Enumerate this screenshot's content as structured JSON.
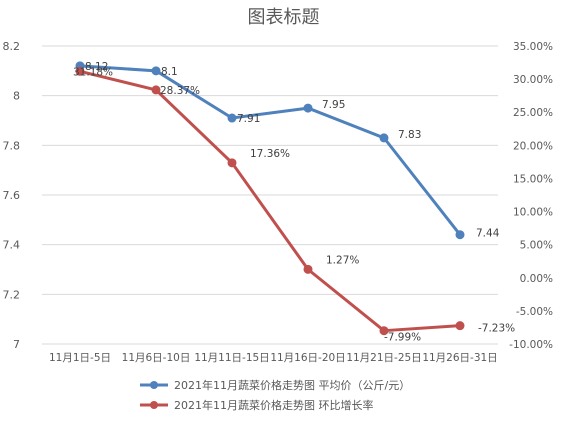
{
  "chart_data": {
    "type": "line",
    "title": "图表标题",
    "categories": [
      "11月1日-5日",
      "11月6日-10日",
      "11月11日-15日",
      "11月16日-20日",
      "11月21日-25日",
      "11月26日-31日"
    ],
    "series": [
      {
        "name": "2021年11月蔬菜价格走势图 平均价（公斤/元）",
        "axis": "left",
        "color": "#4f81bd",
        "values": [
          8.12,
          8.1,
          7.91,
          7.95,
          7.83,
          7.44
        ],
        "labels": [
          "8.12",
          "8.1",
          "7.91",
          "7.95",
          "7.83",
          "7.44"
        ]
      },
      {
        "name": "2021年11月蔬菜价格走势图 环比增长率",
        "axis": "right",
        "color": "#c0504d",
        "values": [
          31.18,
          28.37,
          17.36,
          1.27,
          -7.99,
          -7.23
        ],
        "labels": [
          "31.18%",
          "28.37%",
          "17.36%",
          "1.27%",
          "-7.99%",
          "-7.23%"
        ]
      }
    ],
    "y_left": {
      "ylim": [
        7,
        8.2
      ],
      "ticks": [
        7,
        7.2,
        7.4,
        7.6,
        7.8,
        8,
        8.2
      ],
      "tick_labels": [
        "7",
        "7.2",
        "7.4",
        "7.6",
        "7.8",
        "8",
        "8.2"
      ]
    },
    "y_right": {
      "ylim": [
        -10,
        35
      ],
      "ticks": [
        -10,
        -5,
        0,
        5,
        10,
        15,
        20,
        25,
        30,
        35
      ],
      "tick_labels": [
        "-10.00%",
        "-5.00%",
        "0.00%",
        "5.00%",
        "10.00%",
        "15.00%",
        "20.00%",
        "25.00%",
        "30.00%",
        "35.00%"
      ]
    },
    "grid": true,
    "legend": "bottom"
  }
}
